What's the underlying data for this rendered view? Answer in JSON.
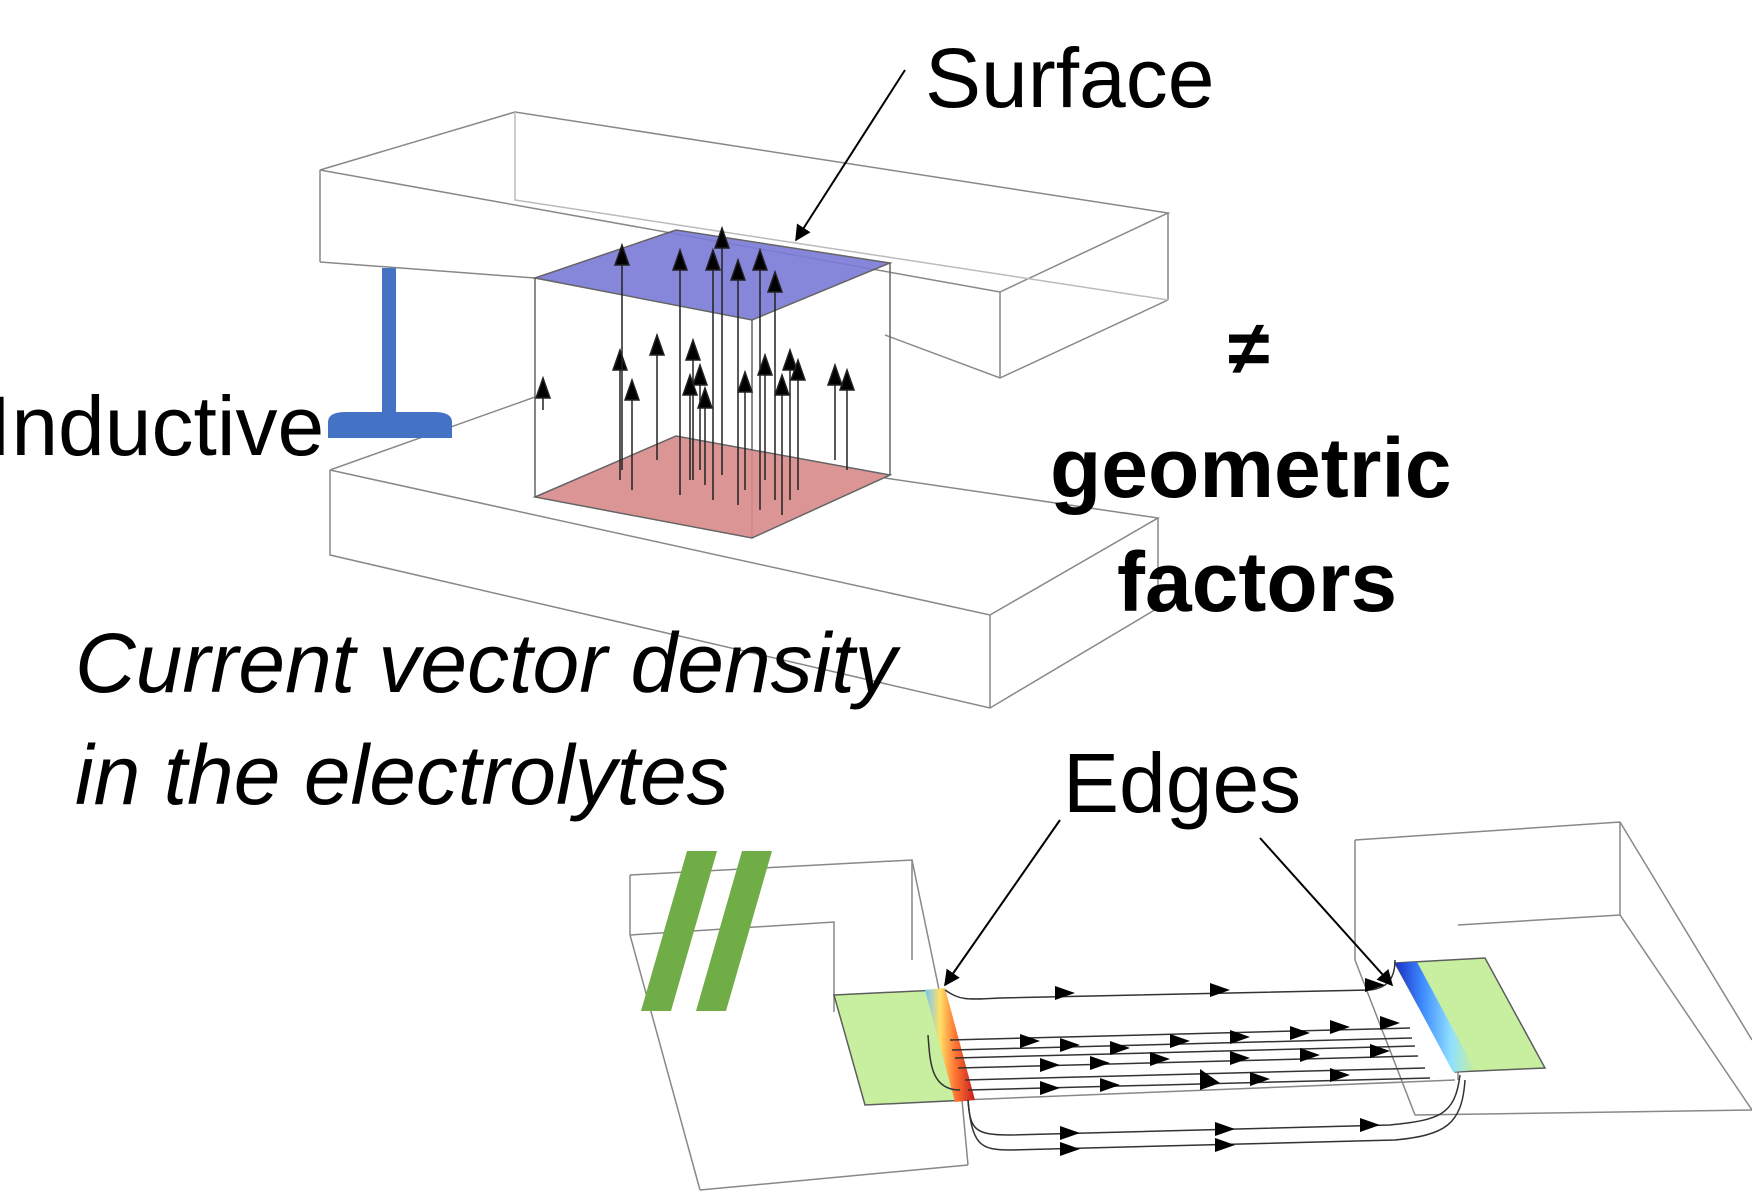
{
  "labels": {
    "surface": "Surface",
    "inductive": "Inductive",
    "neq": "≠",
    "geometric": "geometric",
    "factors": "factors",
    "caption_line1": "Current vector density",
    "caption_line2": "in the electrolytes",
    "edges": "Edges"
  },
  "symbols": {
    "perpendicular": "perpendicular-icon",
    "parallel": "parallel-icon"
  },
  "colors": {
    "perpendicular": "#4472c4",
    "parallel": "#70ad47",
    "top_electrode": "#7a7ad8",
    "bottom_electrode": "#d98a8a",
    "edge_electrode": "#c6ef9a"
  }
}
